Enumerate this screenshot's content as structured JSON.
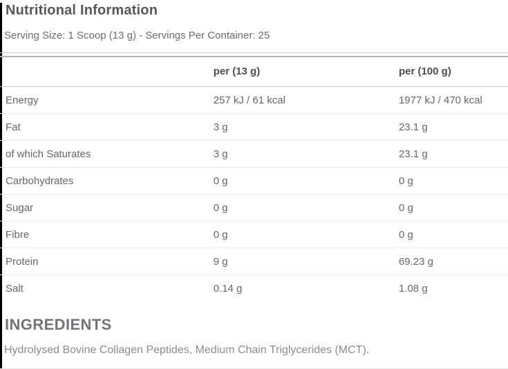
{
  "page": {
    "title": "Nutritional Information",
    "serving_info": "Serving Size: 1 Scoop (13 g) - Servings Per Container: 25"
  },
  "table": {
    "columns": [
      "",
      "per (13 g)",
      "per (100 g)"
    ],
    "rows": [
      {
        "label": "Energy",
        "per_serving": "257 kJ / 61 kcal",
        "per_100g": "1977 kJ / 470 kcal"
      },
      {
        "label": "Fat",
        "per_serving": "3 g",
        "per_100g": "23.1 g"
      },
      {
        "label": "of which Saturates",
        "per_serving": "3 g",
        "per_100g": "23.1 g"
      },
      {
        "label": "Carbohydrates",
        "per_serving": "0 g",
        "per_100g": "0 g"
      },
      {
        "label": "Sugar",
        "per_serving": "0 g",
        "per_100g": "0 g"
      },
      {
        "label": "Fibre",
        "per_serving": "0 g",
        "per_100g": "0 g"
      },
      {
        "label": "Protein",
        "per_serving": "9 g",
        "per_100g": "69.23 g"
      },
      {
        "label": "Salt",
        "per_serving": "0.14 g",
        "per_100g": "1.08 g"
      }
    ]
  },
  "ingredients": {
    "heading": "INGREDIENTS",
    "text": "Hydrolysed Bovine Collagen Peptides, Medium Chain Triglycerides (MCT)."
  },
  "colors": {
    "title_text": "#57575a",
    "body_text": "#6b6b6b",
    "value_text": "#666668",
    "muted_text": "#8c8c8c",
    "divider_strong": "#b2b2b2",
    "divider_medium": "#cccccc",
    "divider_light": "#e9e9e9",
    "left_edge_line": "#000000"
  }
}
